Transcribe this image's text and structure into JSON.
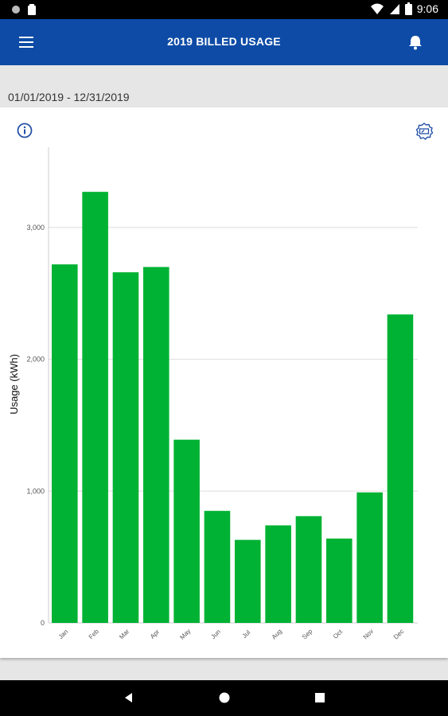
{
  "status_bar": {
    "time": "9:06",
    "icons": [
      "record-icon",
      "clipboard-icon",
      "wifi-icon",
      "signal-icon",
      "battery-icon"
    ]
  },
  "app_bar": {
    "title": "2019 BILLED USAGE",
    "menu_icon": "hamburger-menu-icon",
    "notification_icon": "bell-icon"
  },
  "date_range": "01/01/2019 - 12/31/2019",
  "card": {
    "info_icon": "info-icon",
    "meter_icon": "meter-icon"
  },
  "colors": {
    "app_bar": "#0d4ba6",
    "bar": "#00b233",
    "icon_blue": "#2552a8"
  },
  "chart_data": {
    "type": "bar",
    "categories": [
      "Jan",
      "Feb",
      "Mar",
      "Apr",
      "May",
      "Jun",
      "Jul",
      "Aug",
      "Sep",
      "Oct",
      "Nov",
      "Dec"
    ],
    "values": [
      2720,
      3270,
      2660,
      2700,
      1390,
      850,
      630,
      740,
      810,
      640,
      990,
      2340
    ],
    "ylabel": "Usage (kWh)",
    "yticks": [
      0,
      1000,
      2000,
      3000
    ],
    "ytick_labels": [
      "0",
      "1,000",
      "2,000",
      "3,000"
    ],
    "ylim": [
      0,
      3600
    ],
    "grid": true
  },
  "nav_bar": {
    "icons": [
      "back-icon",
      "home-icon",
      "recents-icon"
    ]
  }
}
